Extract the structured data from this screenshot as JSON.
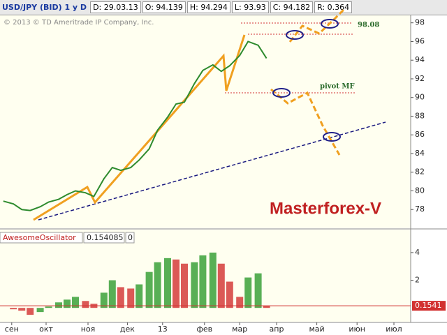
{
  "toolbar": {
    "symbol": "USD/JPY (BID) 1 y D",
    "fields": [
      "D: 29.03.13",
      "O: 94.139",
      "H: 94.294",
      "L: 93.93",
      "C: 94.182",
      "R: 0.364"
    ]
  },
  "chart_data": [
    {
      "type": "line",
      "color": "#2e8b2e",
      "annotations": [
        "© 2013 © TD Ameritrade IP Company, Inc.",
        "98.08",
        "pivot MF",
        "Masterforex-V"
      ],
      "x": [
        2,
        8,
        13,
        18,
        24,
        29,
        35,
        40,
        45,
        51,
        56,
        62,
        67,
        72,
        78,
        83,
        89,
        94,
        100,
        105,
        110,
        116,
        121,
        127,
        132,
        137,
        143,
        148,
        154,
        159
      ],
      "values": [
        78.9,
        78.6,
        78.0,
        77.9,
        78.3,
        78.8,
        79.1,
        79.6,
        80.0,
        79.8,
        79.4,
        81.3,
        82.5,
        82.2,
        82.5,
        83.3,
        84.5,
        86.5,
        87.9,
        89.3,
        89.5,
        91.5,
        92.9,
        93.5,
        92.8,
        93.4,
        94.5,
        96.0,
        95.6,
        94.2
      ],
      "xlim": [
        0,
        245
      ],
      "ylim": [
        76,
        98.8
      ],
      "yticks": [
        78,
        80,
        82,
        84,
        86,
        88,
        90,
        92,
        94,
        96,
        98
      ]
    },
    {
      "type": "bar",
      "title": "AwesomeOscillator",
      "legend_fields": [
        "0.154085",
        "0"
      ],
      "up_color": "#2e9b2e",
      "down_color": "#d23030",
      "x": [
        2,
        8,
        13,
        18,
        24,
        29,
        35,
        40,
        45,
        51,
        56,
        62,
        67,
        72,
        78,
        83,
        89,
        94,
        100,
        105,
        110,
        116,
        121,
        127,
        132,
        137,
        143,
        148,
        154,
        159
      ],
      "values": [
        0,
        -0.1,
        -0.2,
        -0.5,
        -0.3,
        0.1,
        0.4,
        0.6,
        0.8,
        0.5,
        0.3,
        1.1,
        2.0,
        1.5,
        1.4,
        1.7,
        2.6,
        3.3,
        3.6,
        3.5,
        3.2,
        3.3,
        3.8,
        4.0,
        3.2,
        1.9,
        0.8,
        2.2,
        2.5,
        0.154085
      ],
      "last_value_label": "0.1541",
      "xlim": [
        0,
        245
      ],
      "ylim": [
        -1,
        4.5
      ],
      "yticks": [
        2,
        4
      ],
      "xticks": [
        {
          "value": 7,
          "label": "сен"
        },
        {
          "value": 27.5,
          "label": "окт"
        },
        {
          "value": 52.5,
          "label": "ноя"
        },
        {
          "value": 76,
          "label": "дек"
        },
        {
          "value": 97,
          "label": "13"
        },
        {
          "value": 122,
          "label": "фев"
        },
        {
          "value": 143,
          "label": "мар"
        },
        {
          "value": 165,
          "label": "апр"
        },
        {
          "value": 189,
          "label": "май"
        },
        {
          "value": 213,
          "label": "июн"
        },
        {
          "value": 235,
          "label": "июл"
        }
      ]
    }
  ]
}
